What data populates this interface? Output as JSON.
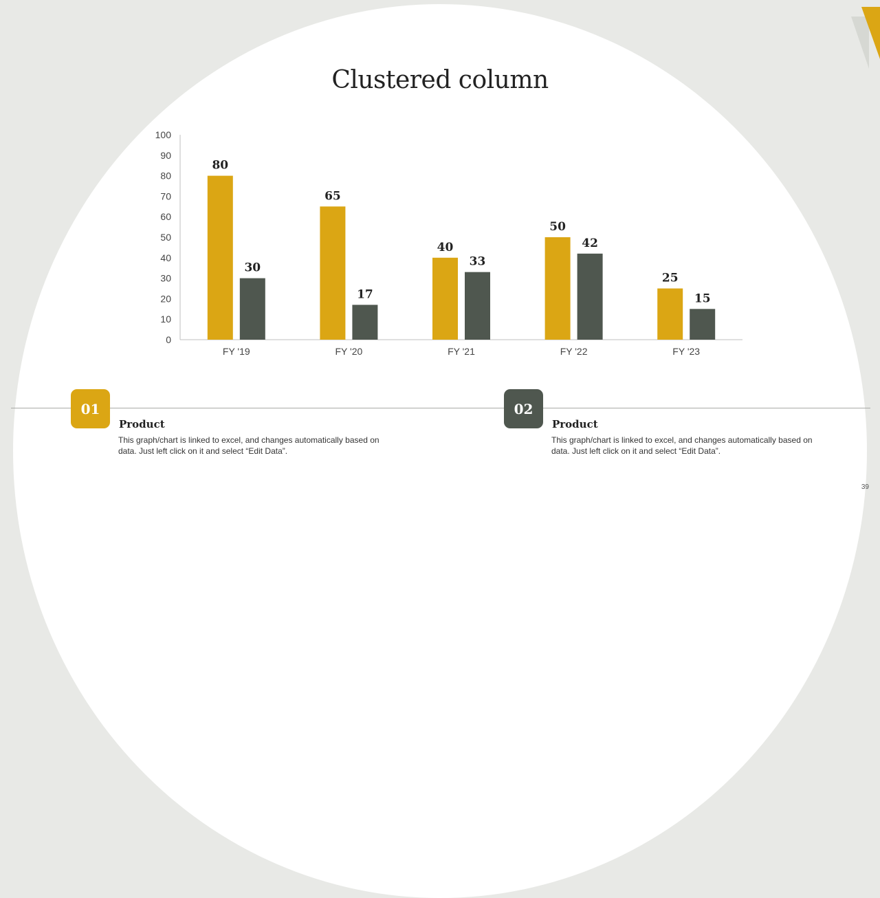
{
  "colors": {
    "gold": "#DBA614",
    "slate": "#4F574F",
    "background": "#E8E9E6",
    "corner_shadow": "#D6D8D3"
  },
  "title": "Clustered column",
  "chart_data": {
    "type": "bar",
    "title": "",
    "categories": [
      "FY '19",
      "FY '20",
      "FY '21",
      "FY '22",
      "FY '23"
    ],
    "series": [
      {
        "color": "#DBA614",
        "values": [
          80,
          65,
          40,
          50,
          25
        ]
      },
      {
        "color": "#4F574F",
        "values": [
          30,
          17,
          33,
          42,
          15
        ]
      }
    ],
    "ylim": [
      0,
      100
    ],
    "yticks": [
      0,
      10,
      20,
      30,
      40,
      50,
      60,
      70,
      80,
      90,
      100
    ],
    "xlabel": "",
    "ylabel": "",
    "grid": false,
    "data_labels": true
  },
  "cards": [
    {
      "number": "01",
      "title": "Product",
      "text": "This graph/chart is linked to excel, and changes automatically based on data. Just left click on it and select “Edit Data”."
    },
    {
      "number": "02",
      "title": "Product",
      "text": "This graph/chart is linked to excel, and changes automatically based on data. Just left click on it and select “Edit Data”."
    }
  ],
  "page_number": "39"
}
